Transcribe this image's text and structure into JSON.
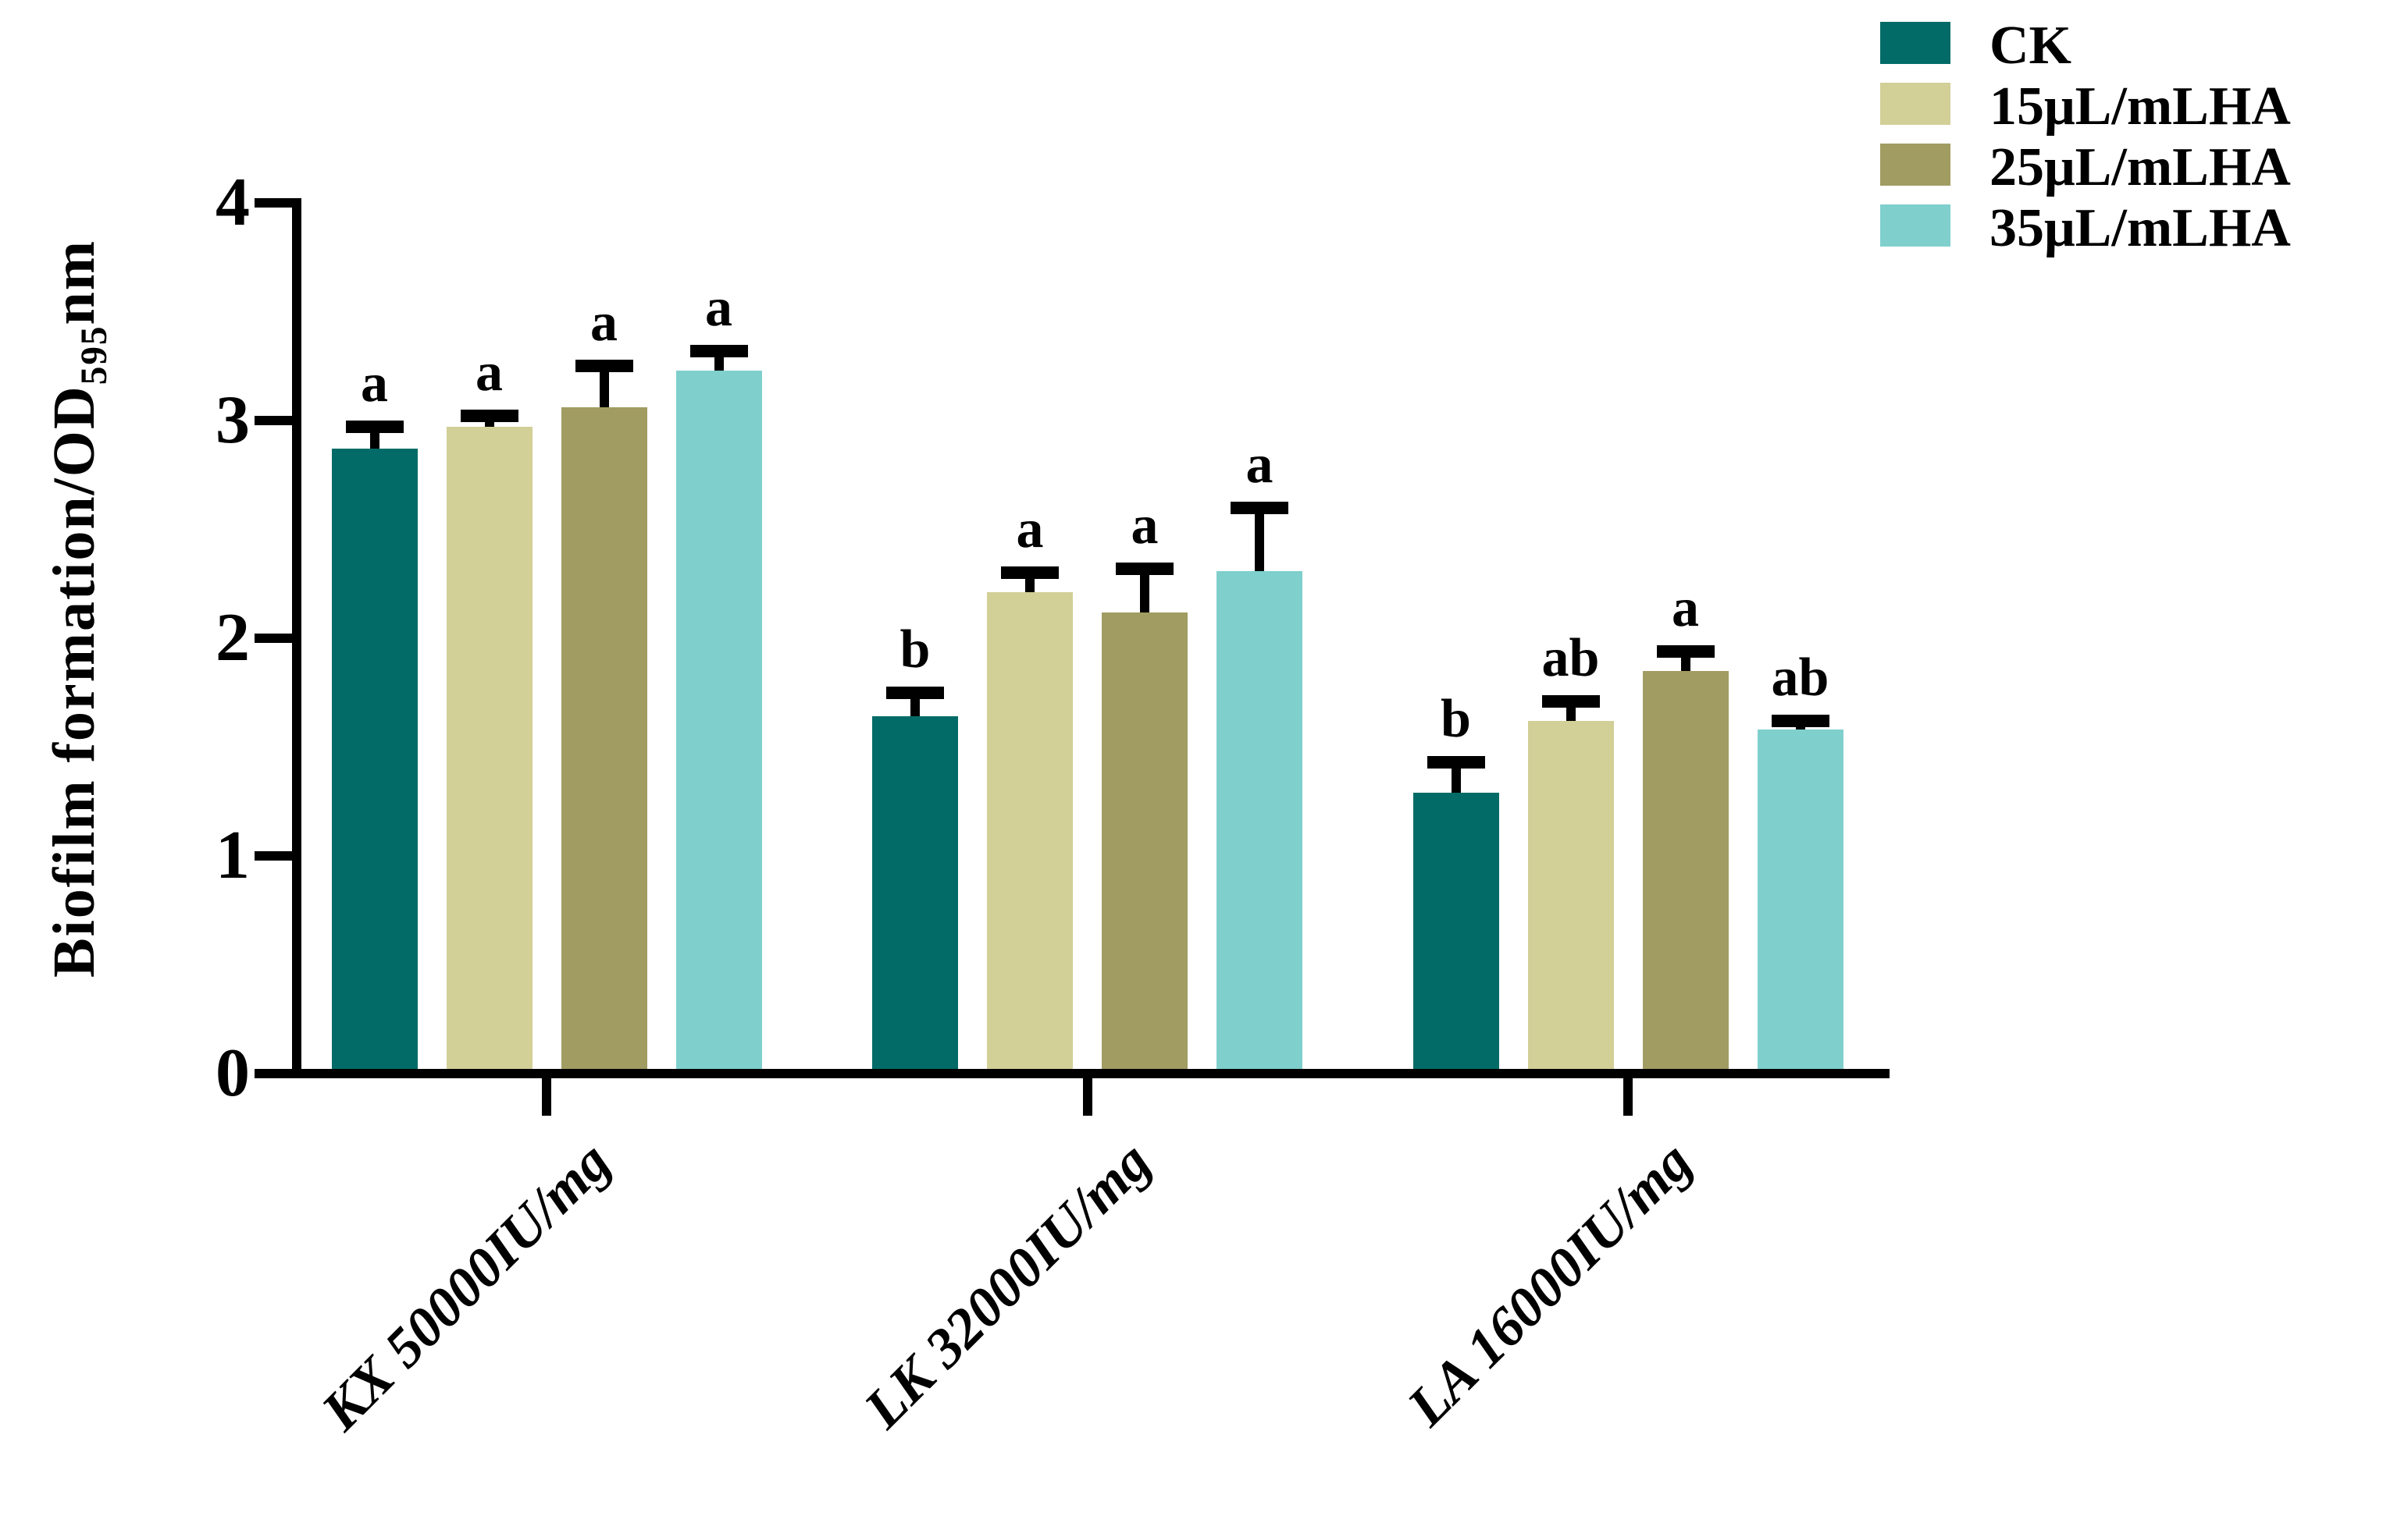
{
  "chart_data": {
    "type": "bar",
    "title": "",
    "ylabel_main": "Biofilm formation/OD",
    "ylabel_sub": "595",
    "ylabel_unit": "nm",
    "xlabel": "",
    "ylim": [
      0,
      4
    ],
    "yticks": [
      "0",
      "1",
      "2",
      "3",
      "4"
    ],
    "grid": false,
    "legend_position": "top-right",
    "axis_color": "#000000",
    "background_color": "#ffffff",
    "categories": [
      "KX 50000IU/mg",
      "LK 32000IU/mg",
      "LA 16000IU/mg"
    ],
    "series": [
      {
        "name": "CK",
        "color": "#036b67",
        "values": [
          2.87,
          1.64,
          1.29
        ],
        "errors": [
          0.1,
          0.11,
          0.14
        ],
        "letters": [
          "a",
          "b",
          "b"
        ]
      },
      {
        "name": "15μL/mLHA",
        "color": "#d2cf97",
        "values": [
          2.97,
          2.21,
          1.62
        ],
        "errors": [
          0.05,
          0.09,
          0.09
        ],
        "letters": [
          "a",
          "a",
          "ab"
        ]
      },
      {
        "name": "25μL/mLHA",
        "color": "#a19c62",
        "values": [
          3.06,
          2.12,
          1.85
        ],
        "errors": [
          0.19,
          0.2,
          0.09
        ],
        "letters": [
          "a",
          "a",
          "a"
        ]
      },
      {
        "name": "35μL/mLHA",
        "color": "#7fcfcc",
        "values": [
          3.23,
          2.31,
          1.58
        ],
        "errors": [
          0.09,
          0.29,
          0.04
        ],
        "letters": [
          "a",
          "a",
          "ab"
        ]
      }
    ]
  }
}
